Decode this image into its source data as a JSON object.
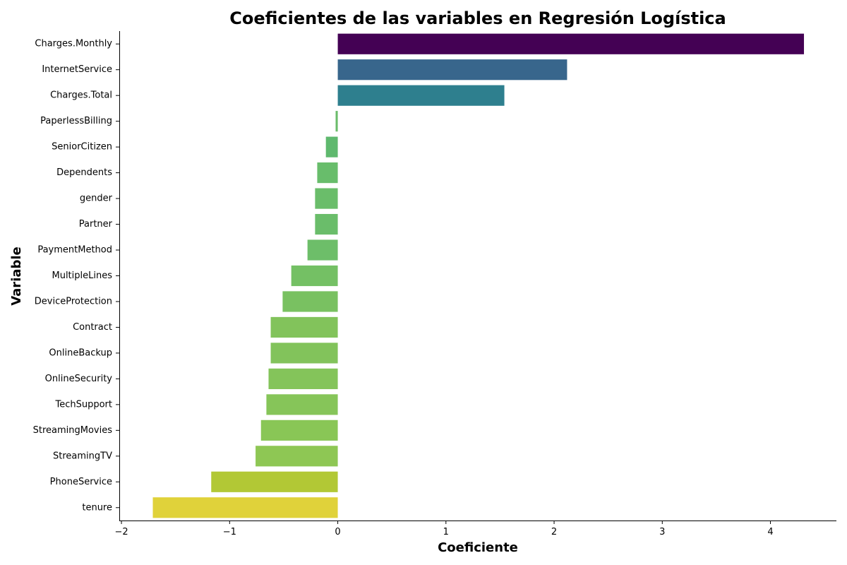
{
  "chart_data": {
    "type": "bar",
    "orientation": "horizontal",
    "title": "Coeficientes de las variables en Regresión Logística",
    "xlabel": "Coeficiente",
    "ylabel": "Variable",
    "xlim": [
      -2.02,
      4.61
    ],
    "xticks": [
      -2,
      -1,
      0,
      1,
      2,
      3,
      4
    ],
    "xtick_labels": [
      "−2",
      "−1",
      "0",
      "1",
      "2",
      "3",
      "4"
    ],
    "grid": false,
    "legend": "none",
    "categories": [
      "Charges.Monthly",
      "InternetService",
      "Charges.Total",
      "PaperlessBilling",
      "SeniorCitizen",
      "Dependents",
      "gender",
      "Partner",
      "PaymentMethod",
      "MultipleLines",
      "DeviceProtection",
      "Contract",
      "OnlineBackup",
      "OnlineSecurity",
      "TechSupport",
      "StreamingMovies",
      "StreamingTV",
      "PhoneService",
      "tenure"
    ],
    "values": [
      4.31,
      2.12,
      1.54,
      -0.02,
      -0.11,
      -0.19,
      -0.21,
      -0.21,
      -0.28,
      -0.43,
      -0.51,
      -0.62,
      -0.62,
      -0.64,
      -0.66,
      -0.71,
      -0.76,
      -1.17,
      -1.71
    ],
    "colors": [
      "#440154",
      "#38668c",
      "#2e7f8e",
      "#6abc6a",
      "#5fb96e",
      "#68bd6b",
      "#6abd6a",
      "#6abd6a",
      "#6dbe69",
      "#74c064",
      "#79c161",
      "#82c35b",
      "#82c35b",
      "#84c45a",
      "#86c559",
      "#89c656",
      "#8ec754",
      "#b2c835",
      "#e0d23a"
    ]
  }
}
